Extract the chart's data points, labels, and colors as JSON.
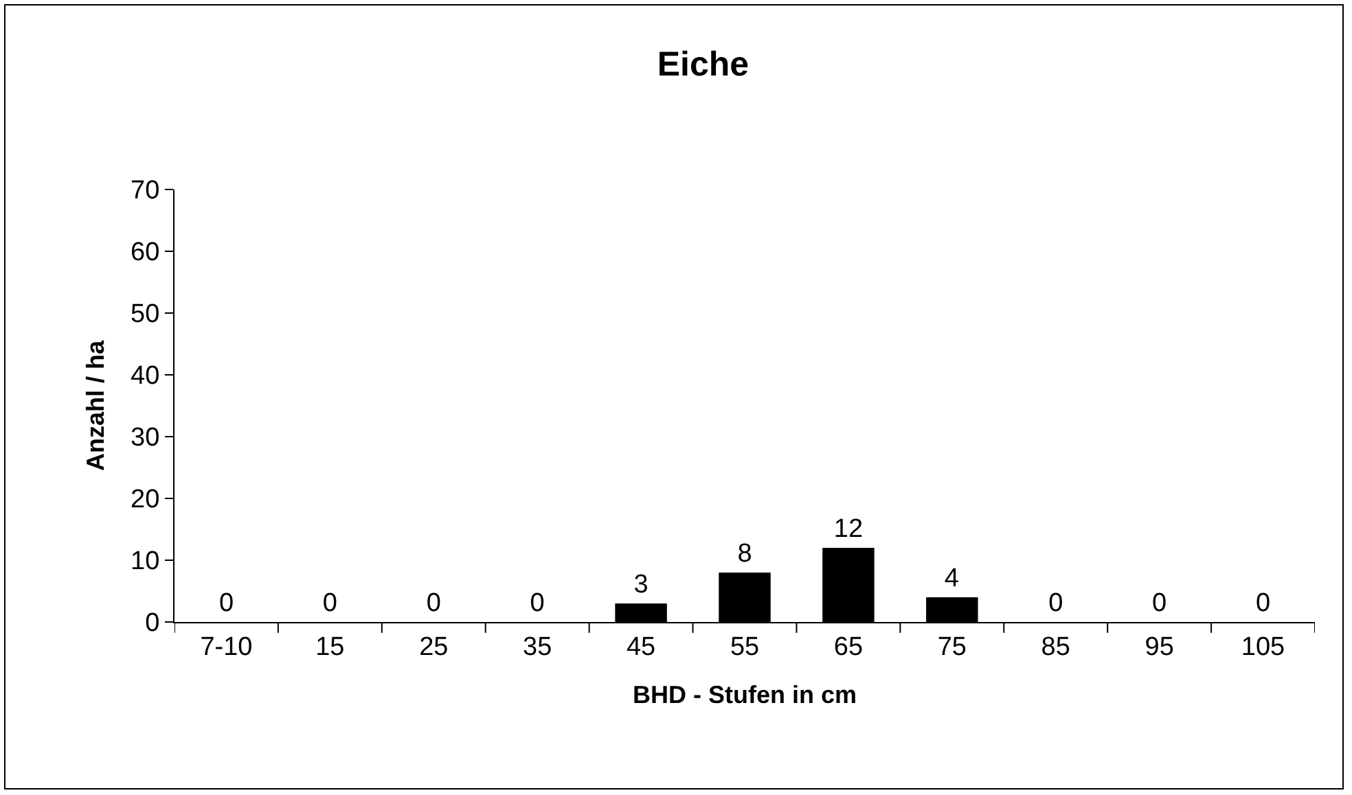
{
  "chart_data": {
    "type": "bar",
    "title": "Eiche",
    "xlabel": "BHD - Stufen in cm",
    "ylabel": "Anzahl / ha",
    "categories": [
      "7-10",
      "15",
      "25",
      "35",
      "45",
      "55",
      "65",
      "75",
      "85",
      "95",
      "105"
    ],
    "values": [
      0,
      0,
      0,
      0,
      3,
      8,
      12,
      4,
      0,
      0,
      0
    ],
    "color": "#000000",
    "ylim": [
      0,
      70
    ],
    "yticks": [
      0,
      10,
      20,
      30,
      40,
      50,
      60,
      70
    ],
    "grid": false,
    "data_labels": true
  }
}
